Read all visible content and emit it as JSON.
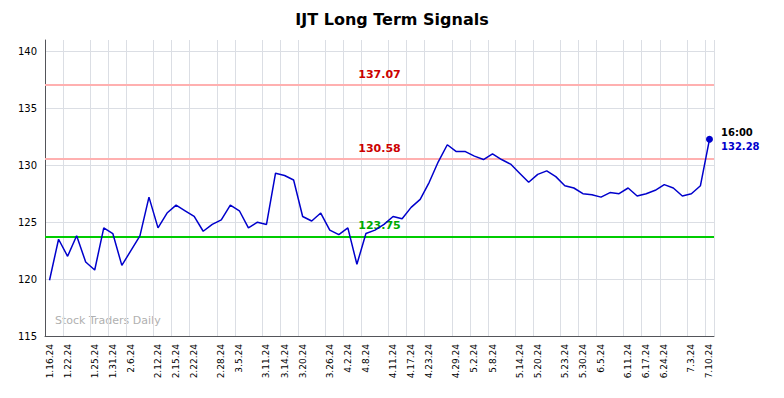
{
  "chart_data": {
    "type": "line",
    "title": "IJT Long Term Signals",
    "categories": [
      "1.16.24",
      null,
      "1.22.24",
      null,
      null,
      "1.25.24",
      null,
      "1.31.24",
      null,
      "2.6.24",
      null,
      null,
      "2.12.24",
      null,
      "2.15.24",
      null,
      "2.22.24",
      null,
      null,
      "2.28.24",
      null,
      "3.5.24",
      null,
      null,
      "3.11.24",
      null,
      "3.14.24",
      null,
      "3.20.24",
      null,
      null,
      "3.26.24",
      null,
      "4.2.24",
      null,
      "4.8.24",
      null,
      null,
      "4.11.24",
      null,
      "4.17.24",
      null,
      "4.23.24",
      null,
      null,
      "4.29.24",
      null,
      "5.2.24",
      null,
      "5.8.24",
      null,
      null,
      "5.14.24",
      null,
      "5.20.24",
      null,
      null,
      "5.23.24",
      null,
      "5.30.24",
      null,
      "6.5.24",
      null,
      null,
      "6.11.24",
      null,
      "6.17.24",
      null,
      "6.24.24",
      null,
      null,
      "7.3.24",
      null,
      "7.10.24"
    ],
    "values": [
      119.9,
      123.5,
      122.0,
      123.8,
      121.5,
      120.8,
      124.5,
      124.0,
      121.2,
      122.5,
      123.8,
      127.2,
      124.5,
      125.8,
      126.5,
      126.0,
      125.5,
      124.2,
      124.8,
      125.2,
      126.5,
      126.0,
      124.5,
      125.0,
      124.8,
      129.3,
      129.1,
      128.7,
      125.5,
      125.1,
      125.8,
      124.3,
      123.9,
      124.5,
      121.3,
      124.0,
      124.3,
      124.8,
      125.5,
      125.3,
      126.3,
      127.0,
      128.5,
      130.3,
      131.8,
      131.2,
      131.2,
      130.8,
      130.5,
      131.0,
      130.5,
      130.1,
      129.3,
      128.5,
      129.2,
      129.5,
      129.0,
      128.2,
      128.0,
      127.5,
      127.4,
      127.2,
      127.6,
      127.5,
      128.0,
      127.3,
      127.5,
      127.8,
      128.3,
      128.0,
      127.3,
      127.5,
      128.2,
      132.28
    ],
    "color": "#0000cc",
    "ylim": [
      115,
      141
    ],
    "yticks": [
      115,
      120,
      125,
      130,
      135,
      140
    ],
    "grid": true,
    "hlines": [
      {
        "y": 137.07,
        "label": "137.07",
        "color": "#ffb0b0",
        "label_color": "#cc0000"
      },
      {
        "y": 130.58,
        "label": "130.58",
        "color": "#ffb0b0",
        "label_color": "#cc0000"
      },
      {
        "y": 123.75,
        "label": "123.75",
        "color": "#00cc00",
        "label_color": "#00aa00"
      }
    ],
    "last_point": {
      "label": "16:00",
      "value_label": "132.28",
      "value_color": "#0000cc"
    },
    "watermark": "Stock Traders Daily",
    "watermark_color": "#b0b0b0"
  }
}
